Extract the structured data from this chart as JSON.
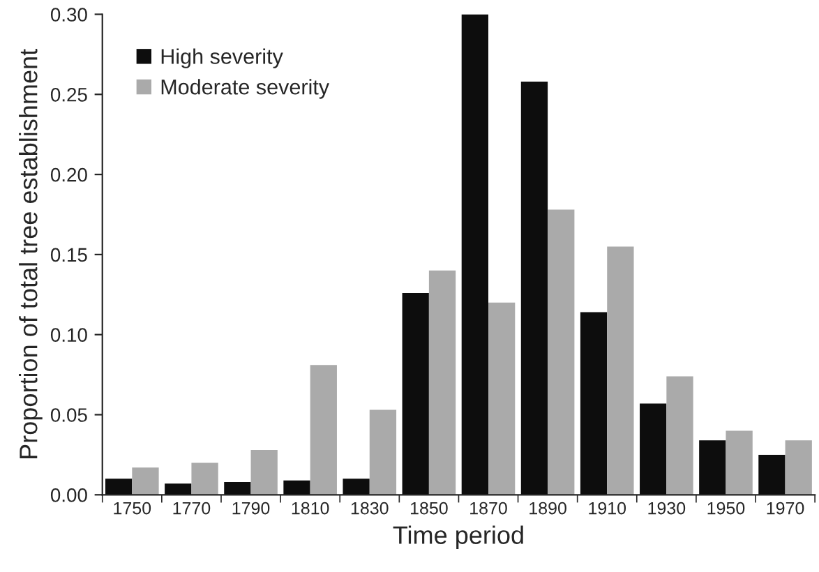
{
  "chart_data": {
    "type": "bar",
    "xlabel": "Time period",
    "ylabel": "Proportion of total tree establishment",
    "categories": [
      "1750",
      "1770",
      "1790",
      "1810",
      "1830",
      "1850",
      "1870",
      "1890",
      "1910",
      "1930",
      "1950",
      "1970"
    ],
    "series": [
      {
        "name": "High severity",
        "color": "#0d0d0d",
        "values": [
          0.01,
          0.007,
          0.008,
          0.009,
          0.01,
          0.126,
          0.3,
          0.258,
          0.114,
          0.057,
          0.034,
          0.025
        ]
      },
      {
        "name": "Moderate severity",
        "color": "#aaaaaa",
        "values": [
          0.017,
          0.02,
          0.028,
          0.081,
          0.053,
          0.14,
          0.12,
          0.178,
          0.155,
          0.074,
          0.04,
          0.034
        ]
      }
    ],
    "ylim": [
      0,
      0.3
    ],
    "yticks": [
      {
        "value": 0,
        "label": "0.00"
      },
      {
        "value": 0.05,
        "label": "0.05"
      },
      {
        "value": 0.1,
        "label": "0.10"
      },
      {
        "value": 0.15,
        "label": "0.15"
      },
      {
        "value": 0.2,
        "label": "0.20"
      },
      {
        "value": 0.25,
        "label": "0.25"
      },
      {
        "value": 0.3,
        "label": "0.30"
      }
    ],
    "legend": "top left",
    "grid": false
  }
}
